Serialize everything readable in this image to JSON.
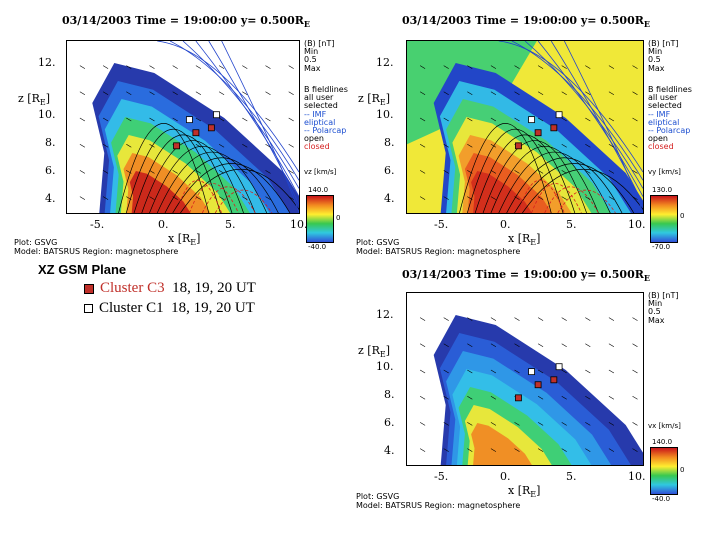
{
  "panels": [
    {
      "title": "03/14/2003 Time = 19:00:00 y= 0.500R",
      "title_sub": "E",
      "colorbar": {
        "label": "vz [km/s]",
        "max": "140.0",
        "mid": "0",
        "min": "-40.0"
      },
      "legend": [
        "B fieldlines",
        "all user",
        "selected",
        "-- IMF",
        "eliptical",
        "-- Polarcap",
        "open",
        "closed"
      ],
      "side_labels": {
        "units": "(B) [nT]",
        "min": "Min",
        "min_val": "0.5",
        "max": "Max"
      }
    },
    {
      "title": "03/14/2003 Time = 19:00:00 y= 0.500R",
      "title_sub": "E",
      "colorbar": {
        "label": "vy [km/s]",
        "max": "130.0",
        "mid": "0",
        "min": "-70.0"
      },
      "legend": [
        "B fieldlines",
        "all user",
        "selected",
        "-- IMF",
        "eliptical",
        "-- Polarcap",
        "open",
        "closed"
      ],
      "side_labels": {
        "units": "(B) [nT]",
        "min": "Min",
        "min_val": "0.5",
        "max": "Max"
      }
    },
    {
      "title": "03/14/2003 Time = 19:00:00 y= 0.500R",
      "title_sub": "E",
      "colorbar": {
        "label": "vx [km/s]",
        "max": "140.0",
        "mid": "0",
        "min": "-40.0"
      },
      "legend": [],
      "side_labels": {
        "units": "(B) [nT]",
        "min": "Min",
        "min_val": "0.5",
        "max": "Max"
      }
    }
  ],
  "axes": {
    "y_ticks": [
      "12.",
      "10.",
      "8.",
      "6.",
      "4."
    ],
    "x_ticks": [
      "-5.",
      "0.",
      "5.",
      "10."
    ],
    "y_label": "z [R",
    "y_label_sub": "E",
    "x_label": "x [R",
    "x_label_sub": "E"
  },
  "footer": {
    "line1": "Plot: GSVG",
    "line2": "Model: BATSRUS   Region: magnetosphere"
  },
  "big_legend": {
    "title": "XZ GSM Plane",
    "rows": [
      {
        "name": "Cluster C3",
        "times": "18, 19, 20 UT",
        "color": "#c0302a"
      },
      {
        "name": "Cluster C1",
        "times": "18, 19, 20 UT",
        "color": "#000000"
      }
    ]
  },
  "chart_data": [
    {
      "type": "heatmap",
      "title": "03/14/2003 Time = 19:00:00 y= 0.500RE",
      "xlabel": "x [RE]",
      "ylabel": "z [RE]",
      "xlim": [
        -8,
        10
      ],
      "ylim": [
        3.5,
        14
      ],
      "colorbar": {
        "quantity": "vz [km/s]",
        "range": [
          -40,
          140
        ]
      },
      "cluster_c3": [
        [
          0.5,
          7.6
        ],
        [
          2.0,
          8.4
        ],
        [
          3.2,
          8.7
        ]
      ],
      "cluster_c1": [
        [
          1.5,
          9.2
        ],
        [
          3.6,
          9.5
        ]
      ]
    },
    {
      "type": "heatmap",
      "title": "03/14/2003 Time = 19:00:00 y= 0.500RE",
      "xlabel": "x [RE]",
      "ylabel": "z [RE]",
      "xlim": [
        -8,
        10
      ],
      "ylim": [
        3.5,
        14
      ],
      "colorbar": {
        "quantity": "vy [km/s]",
        "range": [
          -70,
          130
        ]
      },
      "cluster_c3": [
        [
          0.5,
          7.6
        ],
        [
          2.0,
          8.4
        ],
        [
          3.2,
          8.7
        ]
      ],
      "cluster_c1": [
        [
          1.5,
          9.2
        ],
        [
          3.6,
          9.5
        ]
      ]
    },
    {
      "type": "heatmap",
      "title": "03/14/2003 Time = 19:00:00 y= 0.500RE",
      "xlabel": "x [RE]",
      "ylabel": "z [RE]",
      "xlim": [
        -8,
        10
      ],
      "ylim": [
        3.5,
        14
      ],
      "colorbar": {
        "quantity": "vx [km/s]",
        "range": [
          -40,
          140
        ]
      },
      "cluster_c3": [
        [
          0.5,
          7.6
        ],
        [
          2.0,
          8.4
        ],
        [
          3.2,
          8.7
        ]
      ],
      "cluster_c1": [
        [
          1.5,
          9.2
        ],
        [
          3.6,
          9.5
        ]
      ]
    }
  ]
}
